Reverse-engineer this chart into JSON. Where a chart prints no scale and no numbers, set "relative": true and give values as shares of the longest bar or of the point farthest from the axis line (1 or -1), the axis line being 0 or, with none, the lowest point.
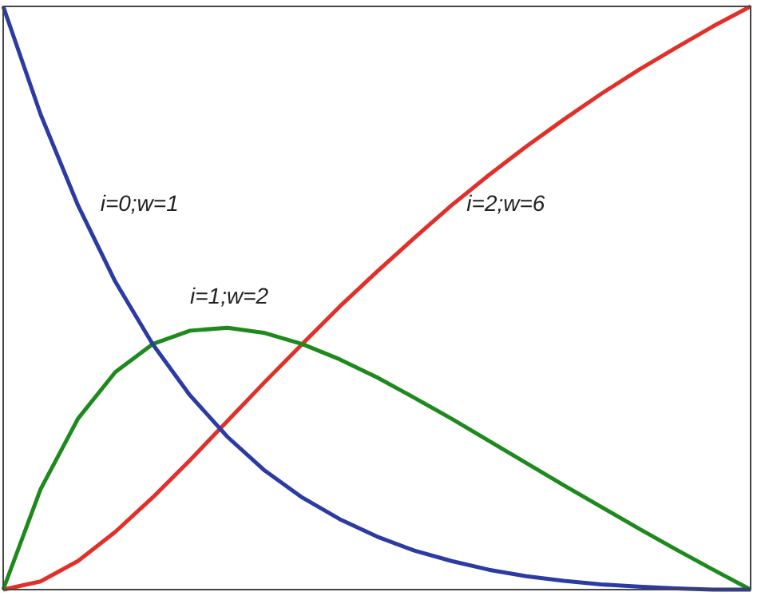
{
  "chart_data": {
    "type": "line",
    "relative": true,
    "grid": false,
    "legend": false,
    "marker": "none",
    "line_style": "solid",
    "categories": [
      null,
      null,
      null,
      null,
      null,
      null,
      null,
      null,
      null,
      null,
      null,
      null,
      null,
      null,
      null,
      null,
      null,
      null,
      null,
      null,
      null
    ],
    "series": [
      {
        "name": "i=0;w=1",
        "color": "#2b3ba3",
        "values": [
          1,
          0.815,
          0.659,
          0.528,
          0.421,
          0.333,
          0.262,
          0.204,
          0.158,
          0.121,
          0.091,
          0.067,
          0.049,
          0.034,
          0.023,
          0.015,
          0.009,
          0.005,
          0.002,
          0,
          0
        ]
      },
      {
        "name": "i=1;w=2",
        "color": "#1e8a1e",
        "values": [
          0,
          0.172,
          0.293,
          0.373,
          0.421,
          0.444,
          0.449,
          0.44,
          0.421,
          0.395,
          0.364,
          0.329,
          0.293,
          0.255,
          0.217,
          0.179,
          0.142,
          0.105,
          0.069,
          0.034,
          0
        ]
      },
      {
        "name": "i=2;w=6",
        "color": "#e0302a",
        "values": [
          0,
          0.014,
          0.049,
          0.099,
          0.158,
          0.222,
          0.289,
          0.356,
          0.421,
          0.485,
          0.545,
          0.603,
          0.659,
          0.711,
          0.76,
          0.806,
          0.85,
          0.891,
          0.929,
          0.966,
          1
        ]
      }
    ]
  }
}
